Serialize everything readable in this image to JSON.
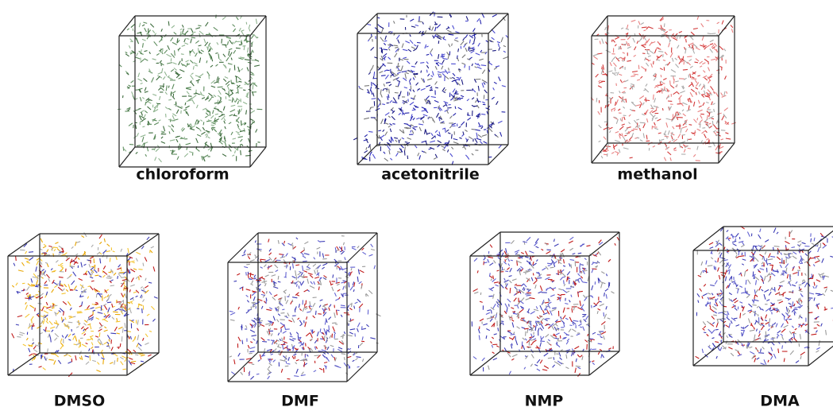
{
  "panels": [
    {
      "label": "chloroform"
    },
    {
      "label": "acetonitrile"
    },
    {
      "label": "methanol"
    },
    {
      "label": "DMSO"
    },
    {
      "label": "DMF"
    },
    {
      "label": "NMP"
    },
    {
      "label": "DMA"
    }
  ]
}
